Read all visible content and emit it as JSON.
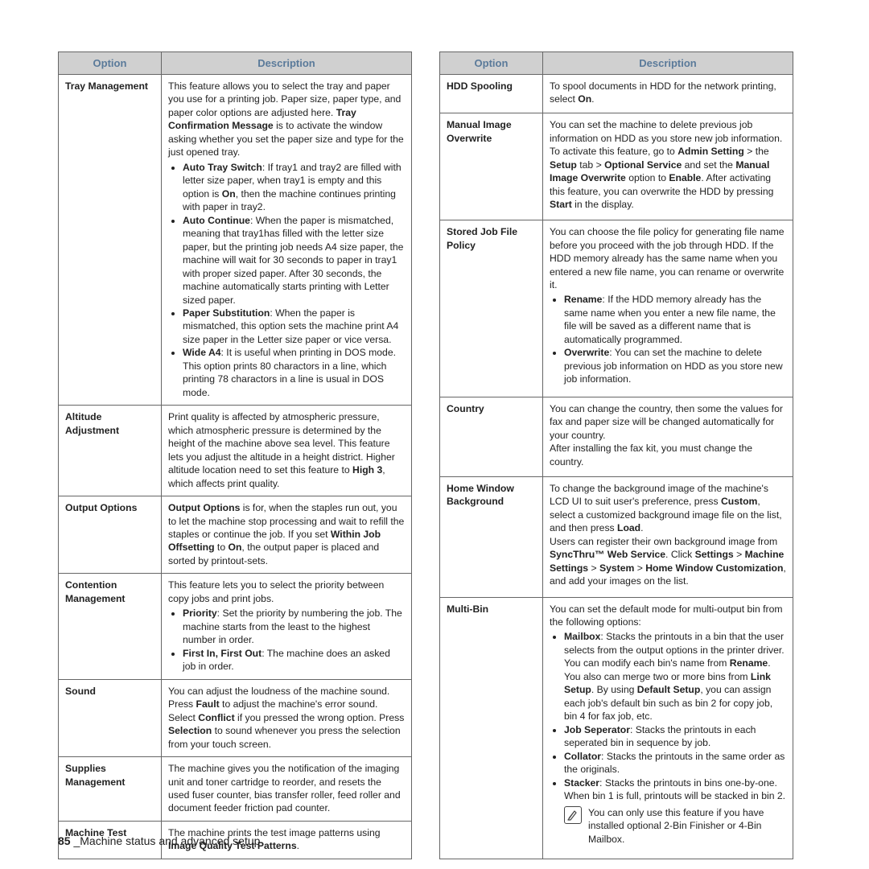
{
  "headers": {
    "option": "Option",
    "description": "Description"
  },
  "footer": {
    "page": "85",
    "sep": " _",
    "title": "Machine status and advanced setup"
  },
  "left": [
    {
      "option": "Tray Management",
      "desc": "This feature allows you to select the tray and paper you use for a printing job. Paper size, paper type, and paper color options are adjusted here. <b>Tray Confirmation Message</b> is to activate the window asking whether you set the paper size and type for the just opened tray.",
      "bullets": [
        "<b>Auto Tray Switch</b>: If tray1 and tray2 are filled with letter size paper, when tray1 is empty and this option is <b>On</b>, then the machine continues printing with paper in tray2.",
        "<b>Auto Continue</b>: When the paper is mismatched, meaning that tray1has filled with the letter size paper, but the printing job needs A4 size paper, the machine will wait for 30 seconds to paper in tray1 with proper sized paper. After 30 seconds, the machine automatically starts printing with Letter sized paper.",
        "<b>Paper Substitution</b>: When the paper is mismatched, this option sets the machine print A4 size paper in the Letter size paper or vice versa.",
        "<b>Wide A4</b>: It is useful when printing in DOS mode. This option prints 80 charactors in a line, which printing 78 charactors in a line is usual in DOS mode."
      ]
    },
    {
      "option": "Altitude Adjustment",
      "desc": "Print quality is affected by atmospheric pressure, which atmospheric pressure is determined by the height of the machine above sea level. This feature lets you adjust the altitude in a height district. Higher altitude location need to set this feature to <b>High 3</b>, which affects print quality."
    },
    {
      "option": "Output Options",
      "desc": "<b>Output Options</b> is for, when the staples run out, you to let the machine stop processing and wait to refill the staples or continue the job. If you set <b>Within Job Offsetting</b> to <b>On</b>, the output paper is placed and sorted by printout-sets."
    },
    {
      "option": "Contention Management",
      "desc": "This feature lets you to select the priority between copy jobs and print jobs.",
      "bullets": [
        "<b>Priority</b>: Set the priority by numbering the job. The machine starts from the least to the highest number in order.",
        "<b>First In, First Out</b>: The machine does an asked job in order."
      ]
    },
    {
      "option": "Sound",
      "desc": "You can adjust the loudness of the machine sound. Press <b>Fault</b> to adjust the machine's error sound. Select <b>Conflict</b> if you pressed the wrong option. Press <b>Selection</b> to sound whenever you press the selection from your touch screen."
    },
    {
      "option": "Supplies Management",
      "desc": "The machine gives you the notification of the imaging unit and toner cartridge to reorder, and resets the used fuser counter, bias transfer roller, feed roller and document feeder friction pad counter."
    },
    {
      "option": "Machine Test",
      "desc": "The machine prints the test image patterns using <b>Image Quality Test Patterns</b>."
    }
  ],
  "right": [
    {
      "option": "HDD Spooling",
      "desc": "To spool documents in HDD for the network printing, select <b>On</b>."
    },
    {
      "option": "Manual Image Overwrite",
      "desc": "You can set the machine to delete previous job information on HDD as you store new job information. To activate this feature, go to <b>Admin Setting</b> > the <b>Setup</b> tab > <b>Optional Service</b> and set the <b>Manual Image Overwrite</b> option to <b>Enable</b>. After activating this feature, you can overwrite the HDD by pressing <b>Start</b> in the display."
    },
    {
      "option": "Stored Job File Policy",
      "desc": "You can choose the file policy for generating file name before you proceed with the job through HDD. If the HDD memory already has the same name when you entered a new file name, you can rename or overwrite it.",
      "bullets": [
        "<b>Rename</b>: If the HDD memory already has the same name when you enter a new file name, the file will be saved as a different name that is automatically programmed.",
        "<b>Overwrite</b>: You can set the machine to delete previous job information on HDD as you store new job information."
      ]
    },
    {
      "option": "Country",
      "desc": "You can change the country, then some the values for fax and paper size will be changed automatically for your country.<br>After installing the fax kit, you must change the country."
    },
    {
      "option": "Home Window Background",
      "desc": "To change the background image of the machine's LCD UI to suit user's preference, press <b>Custom</b>, select a customized background image file on the list, and then press <b>Load</b>.<br>Users can register their own background image from <b>SyncThru™ Web Service</b>. Click <b>Settings</b> > <b>Machine Settings</b> > <b>System</b> > <b>Home Window Customization</b>, and add your images on the list."
    },
    {
      "option": "Multi-Bin",
      "desc": "You can set the default mode for multi-output bin from the following options:",
      "bullets": [
        "<b>Mailbox</b>: Stacks the printouts in a bin that the user selects from the output options in the printer driver. You can modify each bin's name from <b>Rename</b>. You also can merge two or more bins from <b>Link Setup</b>. By using <b>Default Setup</b>, you can assign each job's default bin such as bin 2 for copy job, bin 4 for fax job, etc.",
        "<b>Job Seperator</b>: Stacks the printouts in each seperated bin in sequence by job.",
        "<b>Collator</b>: Stacks the printouts in the same order as the originals.",
        "<b>Stacker</b>: Stacks the printouts in bins one-by-one. When bin 1 is full, printouts will be stacked in bin 2."
      ],
      "note": "You can only use this feature if you have installed optional 2-Bin Finisher or 4-Bin Mailbox."
    }
  ]
}
